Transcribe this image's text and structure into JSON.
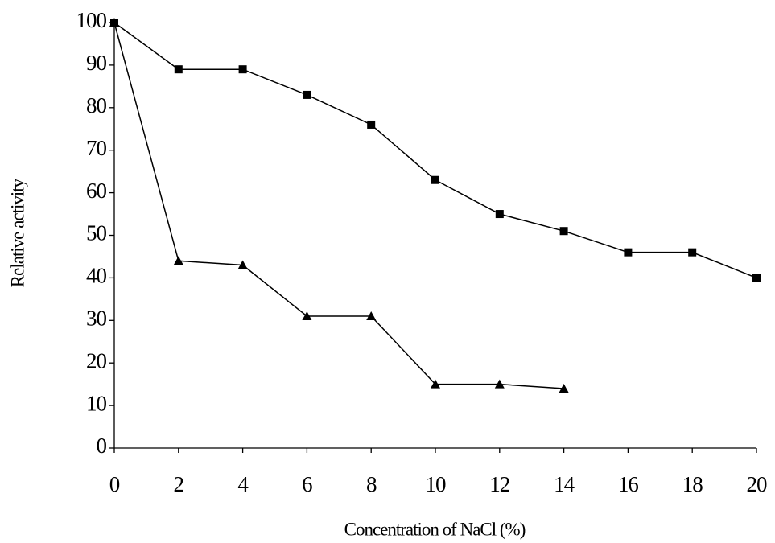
{
  "chart_data": {
    "type": "line",
    "x_label": "Concentration of NaCl (%)",
    "y_label": "Relative activity",
    "x": [
      0,
      2,
      4,
      6,
      8,
      10,
      12,
      14,
      16,
      18,
      20
    ],
    "series": [
      {
        "marker": "square",
        "color": "#000000",
        "values": [
          100,
          89,
          89,
          83,
          76,
          63,
          55,
          51,
          46,
          46,
          40
        ]
      },
      {
        "marker": "triangle",
        "color": "#000000",
        "values": [
          100,
          44,
          43,
          31,
          31,
          15,
          15,
          14,
          null,
          null,
          null
        ]
      }
    ],
    "xlim": [
      0,
      20
    ],
    "xticks": [
      0,
      2,
      4,
      6,
      8,
      10,
      12,
      14,
      16,
      18,
      20
    ],
    "ylim": [
      0,
      100
    ],
    "yticks": [
      0,
      10,
      20,
      30,
      40,
      50,
      60,
      70,
      80,
      90,
      100
    ],
    "grid": false
  }
}
